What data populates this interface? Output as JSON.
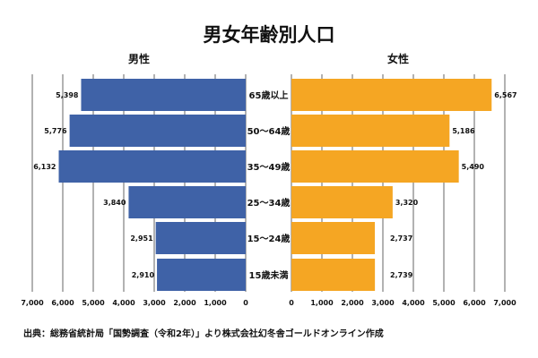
{
  "chart_data": {
    "type": "bar",
    "orientation": "horizontal-pyramid",
    "title": "男女年齢別人口",
    "categories": [
      "65歳以上",
      "50〜64歳",
      "35〜49歳",
      "25〜34歳",
      "15〜24歳",
      "15歳未満"
    ],
    "series": [
      {
        "name": "男性",
        "values": [
          5398,
          5776,
          6132,
          3840,
          2951,
          2910
        ],
        "color": "#3f62a7",
        "value_labels": [
          "5,398",
          "5,776",
          "6,132",
          "3,840",
          "2,951",
          "2,910"
        ]
      },
      {
        "name": "女性",
        "values": [
          6567,
          5186,
          5490,
          3320,
          2737,
          2739
        ],
        "color": "#f5a623",
        "value_labels": [
          "6,567",
          "5,186",
          "5,490",
          "3,320",
          "2,737",
          "2,739"
        ]
      }
    ],
    "xlim": [
      0,
      7000
    ],
    "left_ticks": [
      "7,000",
      "6,000",
      "5,000",
      "4,000",
      "3,000",
      "2,000",
      "1,000",
      "0"
    ],
    "right_ticks": [
      "0",
      "1,000",
      "2,000",
      "3,000",
      "4,000",
      "5,000",
      "6,000",
      "7,000"
    ],
    "grid": true,
    "source": "出典：総務省統計局「国勢調査（令和2年）」より株式会社幻冬舎ゴールドオンライン作成"
  }
}
